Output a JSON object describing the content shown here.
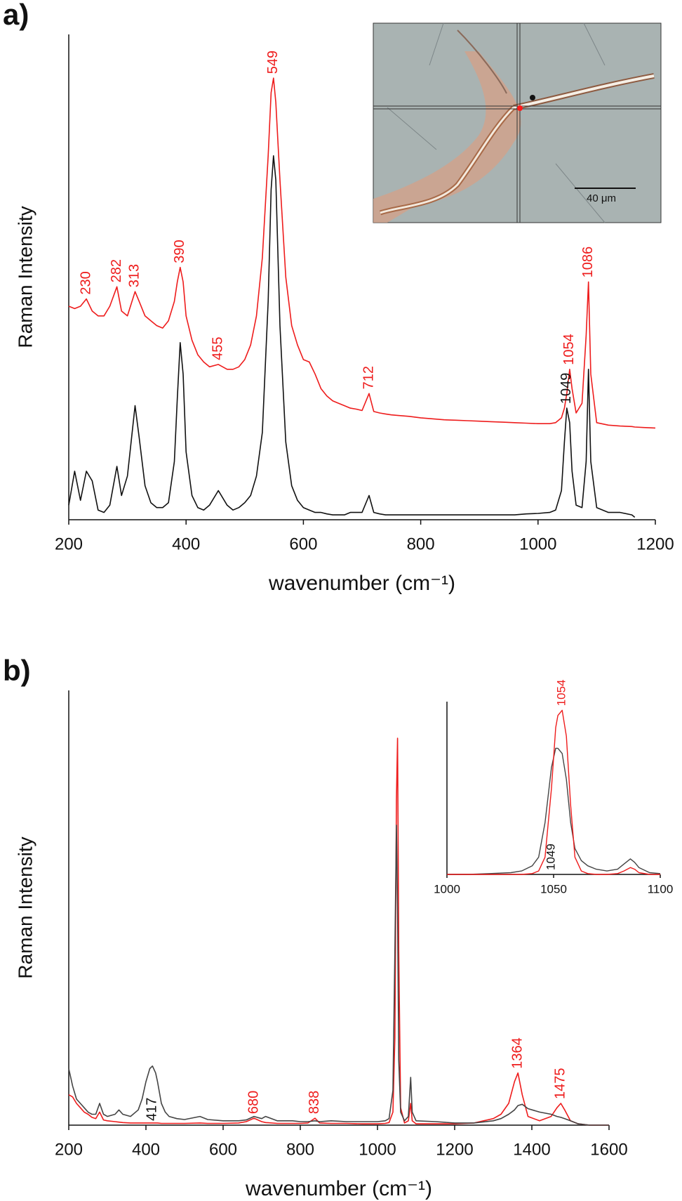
{
  "chart_data": [
    {
      "type": "line",
      "panel": "a)",
      "ylabel": "Raman Intensity",
      "xlabel": "wavenumber (cm⁻¹)",
      "xlim": [
        200,
        1200
      ],
      "xticks": [
        200,
        400,
        600,
        800,
        1000,
        1200
      ],
      "ylim": [
        0,
        100
      ],
      "x": [
        200,
        210,
        220,
        230,
        240,
        250,
        260,
        270,
        282,
        290,
        300,
        313,
        320,
        330,
        340,
        350,
        360,
        370,
        380,
        385,
        390,
        395,
        400,
        410,
        420,
        430,
        440,
        455,
        470,
        480,
        490,
        500,
        510,
        520,
        530,
        540,
        545,
        549,
        553,
        560,
        570,
        580,
        590,
        600,
        610,
        620,
        630,
        640,
        650,
        660,
        670,
        680,
        690,
        700,
        712,
        720,
        730,
        740,
        750,
        760,
        780,
        800,
        820,
        840,
        860,
        880,
        900,
        920,
        940,
        960,
        980,
        1000,
        1020,
        1030,
        1040,
        1045,
        1049,
        1054,
        1058,
        1065,
        1075,
        1082,
        1086,
        1090,
        1100,
        1120,
        1140,
        1160,
        1165,
        1180,
        1200
      ],
      "series": [
        {
          "color": "#111111",
          "values": [
            3,
            10,
            4,
            10,
            8,
            2,
            1.5,
            3,
            11,
            5,
            9,
            23.5,
            17,
            7,
            3.5,
            2.5,
            2.5,
            3.5,
            12,
            25,
            36.5,
            30,
            14,
            5,
            2.5,
            2,
            3,
            6,
            3,
            2,
            2.5,
            3.5,
            5,
            9,
            18,
            45,
            68,
            75,
            70,
            40,
            16,
            7,
            4,
            2.5,
            2,
            1.5,
            1.5,
            1.2,
            1,
            1,
            1,
            1.5,
            1.5,
            1.5,
            5,
            1.5,
            1.2,
            1,
            1,
            1,
            1,
            1,
            1,
            1,
            1,
            1,
            1,
            1,
            1,
            1,
            1.2,
            1.3,
            1.5,
            2,
            6,
            16,
            23,
            20,
            10,
            3,
            2.5,
            12,
            31,
            12,
            2.5,
            1.5,
            1.5,
            1,
            0.5,
            null,
            null
          ]
        },
        {
          "color": "#ee1c1c",
          "values": [
            44,
            43.5,
            44,
            45.5,
            43,
            42,
            42,
            44,
            48,
            43,
            42,
            47,
            45,
            42,
            41,
            40,
            39.5,
            41,
            45,
            49,
            52,
            49,
            42,
            37,
            34,
            32.5,
            31.5,
            32,
            31,
            31,
            31.5,
            33,
            36,
            42,
            54,
            75,
            88,
            91,
            86,
            70,
            50,
            40,
            36,
            33,
            32.5,
            30,
            27,
            25.5,
            24.5,
            24,
            23.5,
            23,
            22.8,
            22.5,
            26,
            22.3,
            22,
            21.8,
            21.6,
            21.5,
            21.3,
            21,
            20.8,
            20.6,
            20.5,
            20.4,
            20.3,
            20.2,
            20.1,
            20,
            19.9,
            19.8,
            19.8,
            20,
            21,
            23,
            26,
            31,
            27,
            22,
            24,
            38,
            49,
            30,
            20,
            19.5,
            19.3,
            19.2,
            19.1,
            19,
            18.9
          ]
        }
      ],
      "annotations": [
        {
          "label": "230",
          "x": 230,
          "color": "#ee1c1c"
        },
        {
          "label": "282",
          "x": 282,
          "color": "#ee1c1c"
        },
        {
          "label": "313",
          "x": 313,
          "color": "#ee1c1c"
        },
        {
          "label": "390",
          "x": 390,
          "color": "#ee1c1c"
        },
        {
          "label": "455",
          "x": 455,
          "color": "#ee1c1c"
        },
        {
          "label": "549",
          "x": 549,
          "color": "#ee1c1c"
        },
        {
          "label": "712",
          "x": 712,
          "color": "#ee1c1c"
        },
        {
          "label": "1049",
          "x": 1049,
          "color": "#111111"
        },
        {
          "label": "1054",
          "x": 1054,
          "color": "#ee1c1c"
        },
        {
          "label": "1086",
          "x": 1086,
          "color": "#ee1c1c"
        }
      ],
      "inset_photo": {
        "scale_bar": "40 μm"
      }
    },
    {
      "type": "line",
      "panel": "b)",
      "ylabel": "Raman Intensity",
      "xlabel": "wavenumber (cm⁻¹)",
      "xlim": [
        200,
        1600
      ],
      "xticks": [
        200,
        400,
        600,
        800,
        1000,
        1200,
        1400,
        1600
      ],
      "ylim": [
        0,
        100
      ],
      "x": [
        200,
        210,
        220,
        230,
        240,
        250,
        260,
        270,
        280,
        290,
        300,
        320,
        330,
        340,
        360,
        380,
        390,
        400,
        410,
        417,
        425,
        430,
        440,
        450,
        460,
        480,
        500,
        540,
        560,
        600,
        640,
        660,
        680,
        700,
        710,
        740,
        780,
        800,
        820,
        838,
        850,
        880,
        920,
        960,
        1000,
        1020,
        1030,
        1040,
        1045,
        1049,
        1052,
        1055,
        1060,
        1070,
        1080,
        1086,
        1090,
        1100,
        1150,
        1200,
        1250,
        1300,
        1320,
        1340,
        1355,
        1364,
        1375,
        1390,
        1420,
        1450,
        1465,
        1475,
        1485,
        1500,
        1520,
        1550,
        1600
      ],
      "series": [
        {
          "color": "#ee1c1c",
          "values": [
            7,
            6.5,
            5,
            4,
            3,
            2.5,
            1.8,
            1.5,
            3,
            1.2,
            1,
            0.8,
            0.7,
            0.6,
            0.5,
            0.5,
            0.5,
            0.5,
            0.5,
            0.5,
            0.5,
            0.5,
            0.4,
            0.4,
            0.4,
            0.4,
            0.4,
            0.5,
            0.4,
            0.4,
            0.5,
            0.8,
            1.6,
            0.8,
            0.6,
            0.4,
            0.4,
            0.4,
            0.5,
            1.6,
            0.5,
            0.4,
            0.4,
            0.3,
            0.3,
            0.4,
            0.6,
            3,
            20,
            75,
            89,
            40,
            4,
            0.5,
            1,
            5,
            1,
            0.3,
            0.3,
            0.3,
            0.5,
            1.5,
            2.5,
            5,
            10,
            12,
            7,
            2,
            1,
            2,
            4,
            5,
            3.5,
            1,
            0.3,
            0,
            0
          ]
        },
        {
          "color": "#444444",
          "values": [
            13,
            9,
            6,
            5,
            4,
            3,
            2.5,
            2.5,
            5,
            2.5,
            2,
            2.5,
            3.5,
            2.5,
            2,
            3.5,
            6,
            10,
            13,
            13.6,
            12,
            10,
            5,
            3,
            2,
            1.5,
            1.3,
            2,
            1.3,
            1,
            1,
            1.2,
            2,
            1.5,
            2,
            1,
            1,
            0.8,
            0.8,
            1,
            0.8,
            1,
            0.8,
            0.8,
            0.8,
            1,
            1.5,
            8,
            40,
            69,
            50,
            15,
            3,
            1,
            2,
            11,
            3,
            1,
            0.8,
            0.5,
            0.5,
            1,
            1.5,
            2.5,
            3.5,
            4.5,
            4.8,
            3.8,
            3,
            2.5,
            2,
            1.8,
            1.5,
            1,
            0.3,
            0,
            0
          ]
        }
      ],
      "annotations": [
        {
          "label": "417",
          "x": 417,
          "color": "#111111"
        },
        {
          "label": "680",
          "x": 680,
          "color": "#ee1c1c"
        },
        {
          "label": "838",
          "x": 838,
          "color": "#ee1c1c"
        },
        {
          "label": "1364",
          "x": 1364,
          "color": "#ee1c1c"
        },
        {
          "label": "1475",
          "x": 1475,
          "color": "#ee1c1c"
        }
      ],
      "inset": {
        "type": "line",
        "xlim": [
          1000,
          1100
        ],
        "xticks": [
          1000,
          1050,
          1100
        ],
        "ylim": [
          0,
          100
        ],
        "x": [
          1000,
          1010,
          1020,
          1030,
          1035,
          1040,
          1043,
          1046,
          1049,
          1051,
          1052,
          1054,
          1056,
          1058,
          1060,
          1063,
          1066,
          1070,
          1075,
          1080,
          1083,
          1086,
          1088,
          1090,
          1095,
          1100
        ],
        "series": [
          {
            "color": "#444444",
            "values": [
              0,
              0,
              0.5,
              1,
              2,
              5,
              10,
              30,
              62,
              73,
              73,
              70,
              55,
              30,
              15,
              8,
              5,
              3,
              2,
              3,
              6,
              9,
              7,
              4,
              1,
              0.5
            ]
          },
          {
            "color": "#ee1c1c",
            "values": [
              0,
              0,
              0,
              0,
              0,
              0.5,
              2,
              10,
              50,
              85,
              92,
              95,
              80,
              40,
              10,
              2,
              0.5,
              0,
              0,
              0.5,
              2,
              4,
              3,
              1,
              0,
              0
            ]
          }
        ],
        "annotations": [
          {
            "label": "1049",
            "x": 1049,
            "color": "#111111"
          },
          {
            "label": "1054",
            "x": 1054,
            "color": "#ee1c1c"
          }
        ]
      }
    }
  ]
}
